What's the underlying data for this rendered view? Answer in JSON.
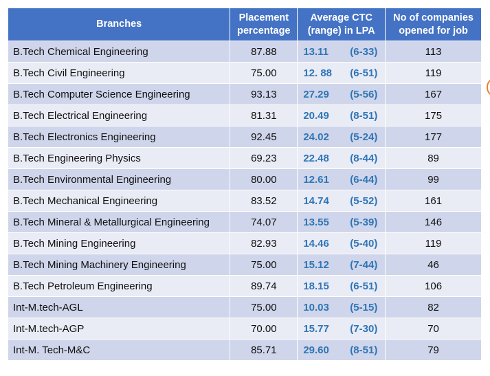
{
  "headers": [
    "Branches",
    "Placement percentage",
    "Average CTC (range) in LPA",
    "No of companies opened for job"
  ],
  "rows": [
    {
      "branch": "B.Tech Chemical Engineering",
      "placement": "87.88",
      "avg": "13.11",
      "range": "(6-33)",
      "companies": "113"
    },
    {
      "branch": "B.Tech Civil Engineering",
      "placement": "75.00",
      "avg": "12. 88",
      "range": "(6-51)",
      "companies": "119"
    },
    {
      "branch": "B.Tech Computer Science Engineering",
      "placement": "93.13",
      "avg": "27.29",
      "range": "(5-56)",
      "companies": "167"
    },
    {
      "branch": "B.Tech Electrical Engineering",
      "placement": "81.31",
      "avg": "20.49",
      "range": "(8-51)",
      "companies": "175"
    },
    {
      "branch": "B.Tech Electronics Engineering",
      "placement": "92.45",
      "avg": "24.02",
      "range": "(5-24)",
      "companies": "177"
    },
    {
      "branch": "B.Tech Engineering Physics",
      "placement": "69.23",
      "avg": "22.48",
      "range": "(8-44)",
      "companies": "89"
    },
    {
      "branch": "B.Tech Environmental Engineering",
      "placement": "80.00",
      "avg": "12.61",
      "range": "(6-44)",
      "companies": "99"
    },
    {
      "branch": "B.Tech Mechanical Engineering",
      "placement": "83.52",
      "avg": "14.74",
      "range": "(5-52)",
      "companies": "161"
    },
    {
      "branch": "B.Tech Mineral & Metallurgical Engineering",
      "placement": "74.07",
      "avg": "13.55",
      "range": "(5-39)",
      "companies": "146"
    },
    {
      "branch": "B.Tech Mining Engineering",
      "placement": "82.93",
      "avg": "14.46",
      "range": "(5-40)",
      "companies": "119"
    },
    {
      "branch": "B.Tech Mining Machinery Engineering",
      "placement": "75.00",
      "avg": "15.12",
      "range": "(7-44)",
      "companies": "46"
    },
    {
      "branch": "B.Tech Petroleum Engineering",
      "placement": "89.74",
      "avg": "18.15",
      "range": "(6-51)",
      "companies": "106"
    },
    {
      "branch": "Int-M.tech-AGL",
      "placement": "75.00",
      "avg": "10.03",
      "range": "(5-15)",
      "companies": "82"
    },
    {
      "branch": "Int-M.tech-AGP",
      "placement": "70.00",
      "avg": "15.77",
      "range": "(7-30)",
      "companies": "70"
    },
    {
      "branch": "Int-M. Tech-M&C",
      "placement": "85.71",
      "avg": "29.60",
      "range": "(8-51)",
      "companies": "79"
    }
  ],
  "colors": {
    "header": "#4472C4",
    "row_dark": "#CFD5EA",
    "row_light": "#E9EBF5",
    "ctc_text": "#2E75B6"
  }
}
